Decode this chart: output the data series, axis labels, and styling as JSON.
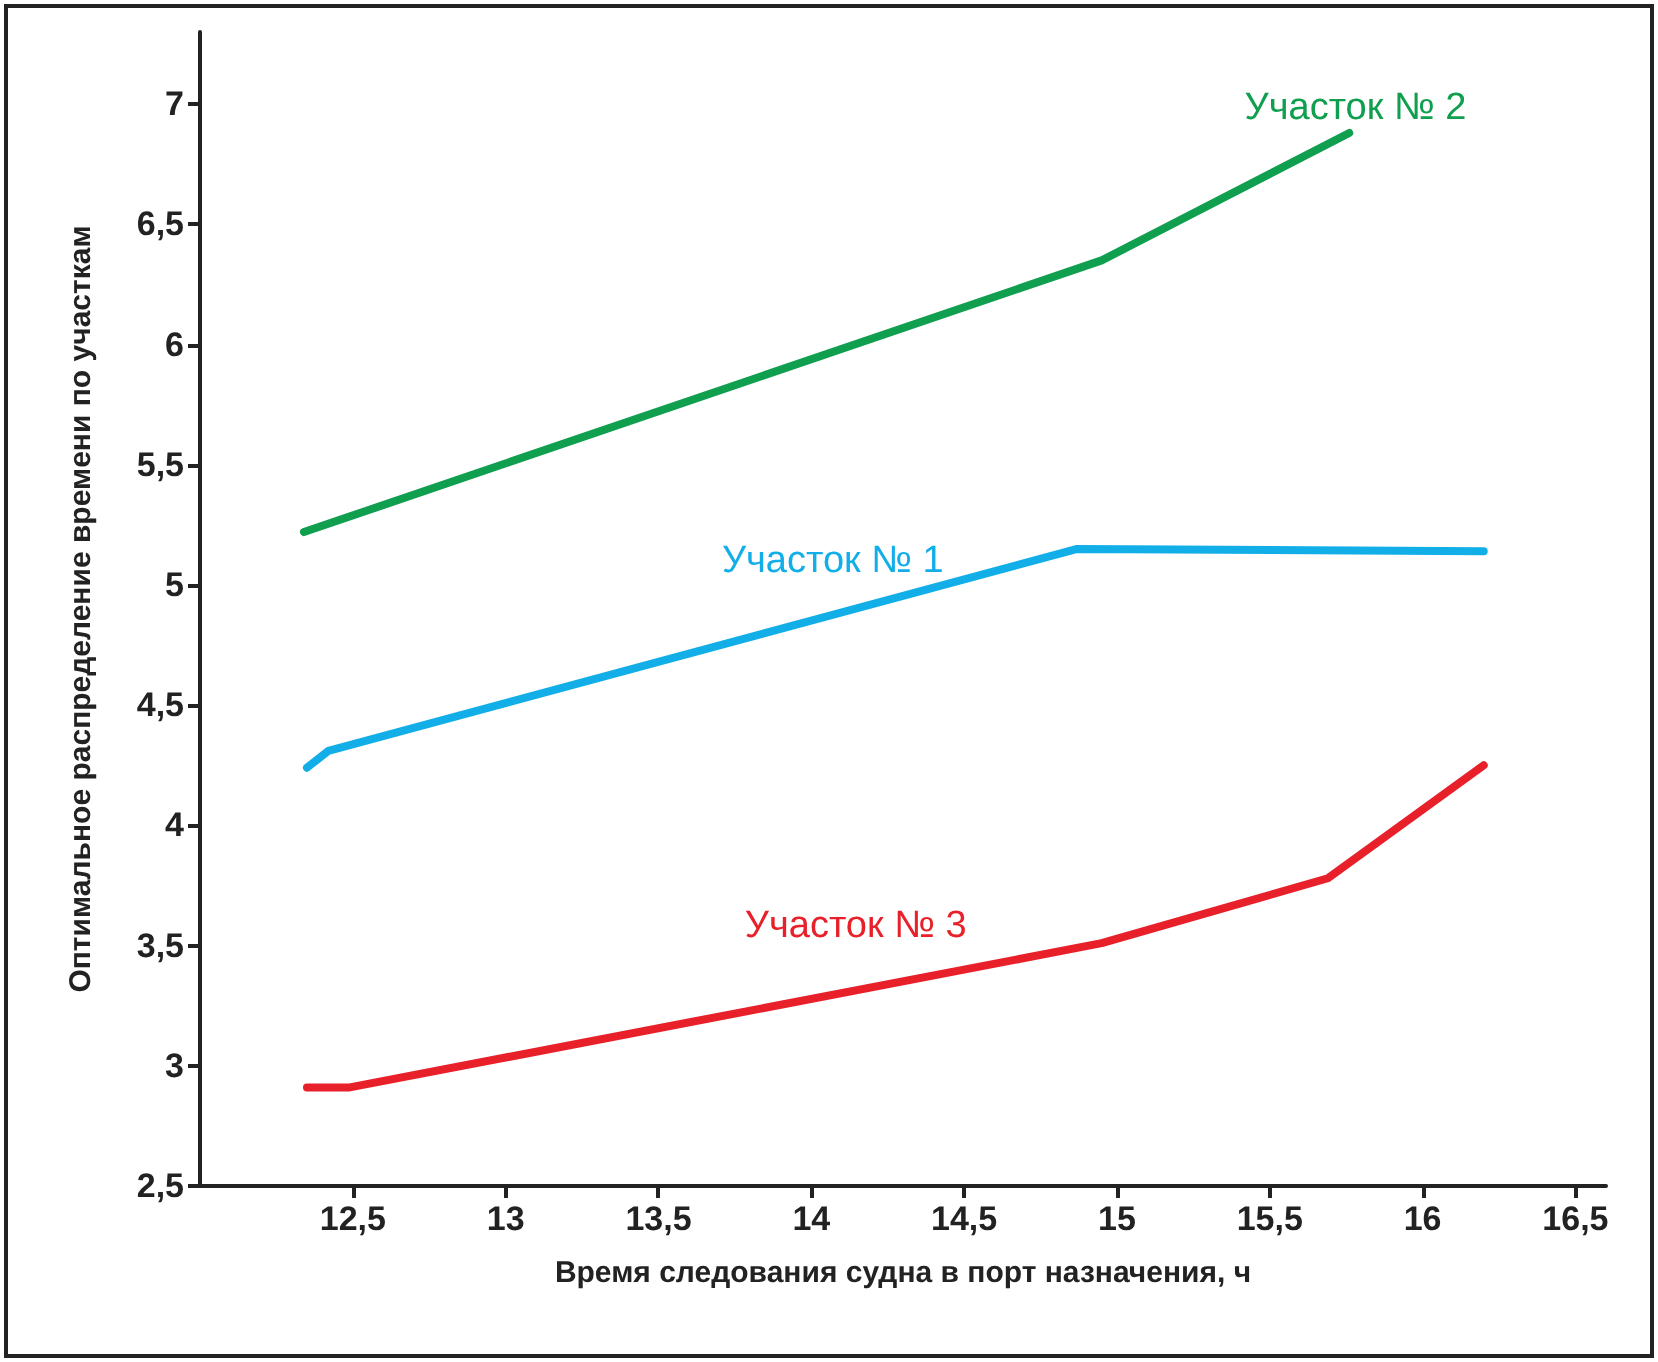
{
  "chart_data": {
    "type": "line",
    "xlabel": "Время следования судна в порт назначения, ч",
    "ylabel": "Оптимальное распределение времени по участкам",
    "xlim": [
      12,
      16.6
    ],
    "xticks": [
      {
        "value": 12.5,
        "label": "12,5"
      },
      13,
      {
        "value": 13.5,
        "label": "13,5"
      },
      14,
      {
        "value": 14.5,
        "label": "14,5"
      },
      15,
      {
        "value": 15.5,
        "label": "15,5"
      },
      16,
      {
        "value": 16.5,
        "label": "16,5"
      }
    ],
    "ylim": [
      2.5,
      7.3
    ],
    "yticks": [
      {
        "value": 2.5,
        "label": "2,5"
      },
      3,
      {
        "value": 3.5,
        "label": "3,5"
      },
      4,
      {
        "value": 4.5,
        "label": "4,5"
      },
      5,
      {
        "value": 5.5,
        "label": "5,5"
      },
      6,
      {
        "value": 6.5,
        "label": "6,5"
      },
      7
    ],
    "grid": false,
    "legend": false,
    "marker": "none",
    "line_style": "solid",
    "series": [
      {
        "name": "Участок № 2",
        "color": "#0f9f4f",
        "x": [
          12.34,
          14.95,
          15.76
        ],
        "values": [
          5.22,
          6.35,
          6.88
        ]
      },
      {
        "name": "Участок № 1",
        "color": "#11aee8",
        "x": [
          12.35,
          12.42,
          14.87,
          16.2
        ],
        "values": [
          4.24,
          4.31,
          5.15,
          5.14
        ]
      },
      {
        "name": "Участок № 3",
        "color": "#e8202a",
        "x": [
          12.35,
          12.49,
          14.95,
          15.69,
          16.2
        ],
        "values": [
          2.91,
          2.91,
          3.51,
          3.78,
          4.25
        ]
      }
    ]
  }
}
